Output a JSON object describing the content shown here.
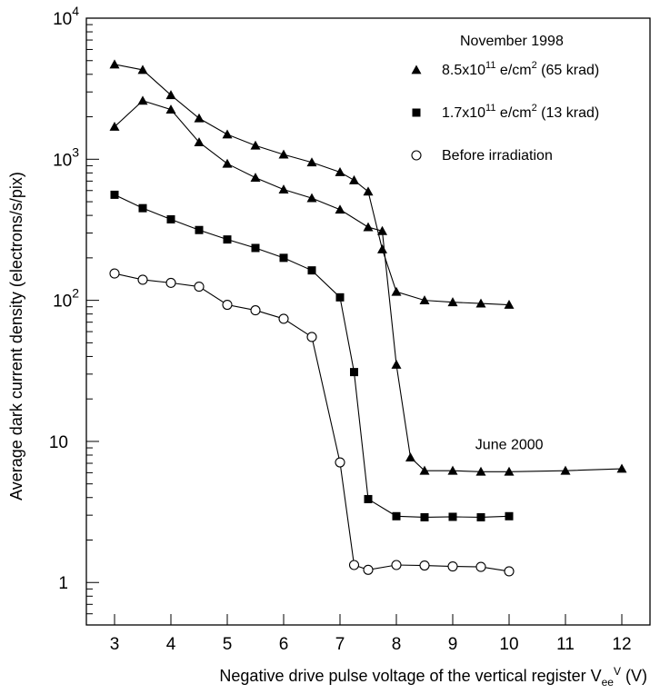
{
  "chart_data": {
    "type": "line",
    "title": "",
    "xlabel": {
      "main": "Negative drive pulse voltage of the vertical register V",
      "sub": "ee",
      "sup": "V",
      "unit": " (V)"
    },
    "ylabel": "Average dark current density (electrons/s/pix)",
    "xlim": [
      2.5,
      12.5
    ],
    "ylim": [
      0.5,
      10000
    ],
    "yscale": "log",
    "grid": false,
    "legend_position": "top-right",
    "legend_title": "November 1998",
    "x_ticks": [
      3,
      4,
      5,
      6,
      7,
      8,
      9,
      10,
      11,
      12
    ],
    "x_tick_labels": [
      "3",
      "4",
      "5",
      "6",
      "7",
      "8",
      "9",
      "10",
      "11",
      "12"
    ],
    "y_ticks": [
      {
        "value": 10000,
        "label": "10",
        "sup": "4"
      },
      {
        "value": 1000,
        "label": "10",
        "sup": "3"
      },
      {
        "value": 100,
        "label": "10",
        "sup": "2"
      },
      {
        "value": 10,
        "label": "10",
        "sup": ""
      },
      {
        "value": 1,
        "label": "1",
        "sup": ""
      }
    ],
    "series": [
      {
        "id": "high-dose-nov1998",
        "name": {
          "pre": "8.5x10",
          "sup1": "11",
          "mid": " e/cm",
          "sup2": "2",
          "post": " (65 krad)"
        },
        "marker": "triangle",
        "x": [
          3,
          3.5,
          4,
          4.5,
          5,
          5.5,
          6,
          6.5,
          7,
          7.25,
          7.5,
          7.75,
          8,
          8.5,
          9,
          9.5,
          10
        ],
        "y": [
          4700,
          4300,
          2850,
          1950,
          1500,
          1250,
          1080,
          950,
          810,
          710,
          590,
          230,
          115,
          100,
          97,
          95,
          93
        ]
      },
      {
        "id": "high-dose-june2000",
        "name": "",
        "marker": "triangle",
        "x": [
          3,
          3.5,
          4,
          4.5,
          5,
          5.5,
          6,
          6.5,
          7,
          7.5,
          7.75,
          8,
          8.25,
          8.5,
          9,
          9.5,
          10,
          11,
          12
        ],
        "y": [
          1700,
          2600,
          2250,
          1320,
          930,
          740,
          610,
          530,
          440,
          330,
          310,
          35,
          7.7,
          6.2,
          6.2,
          6.1,
          6.1,
          6.2,
          6.4
        ]
      },
      {
        "id": "mid-dose",
        "name": {
          "pre": "1.7x10",
          "sup1": "11",
          "mid": " e/cm",
          "sup2": "2",
          "post": " (13 krad)"
        },
        "marker": "square",
        "x": [
          3,
          3.5,
          4,
          4.5,
          5,
          5.5,
          6,
          6.5,
          7,
          7.25,
          7.5,
          8,
          8.5,
          9,
          9.5,
          10
        ],
        "y": [
          560,
          450,
          375,
          315,
          270,
          235,
          200,
          163,
          105,
          31,
          3.9,
          2.95,
          2.9,
          2.92,
          2.9,
          2.95
        ]
      },
      {
        "id": "before-irradiation",
        "name": "Before irradiation",
        "marker": "circle-open",
        "x": [
          3,
          3.5,
          4,
          4.5,
          5,
          5.5,
          6,
          6.5,
          7,
          7.25,
          7.5,
          8,
          8.5,
          9,
          9.5,
          10
        ],
        "y": [
          155,
          140,
          133,
          125,
          93,
          85,
          74,
          55,
          7.1,
          1.33,
          1.23,
          1.33,
          1.32,
          1.3,
          1.29,
          1.2
        ]
      }
    ],
    "annotations": [
      {
        "text": "June  2000",
        "x": 9.4,
        "y": 8.8
      }
    ]
  }
}
